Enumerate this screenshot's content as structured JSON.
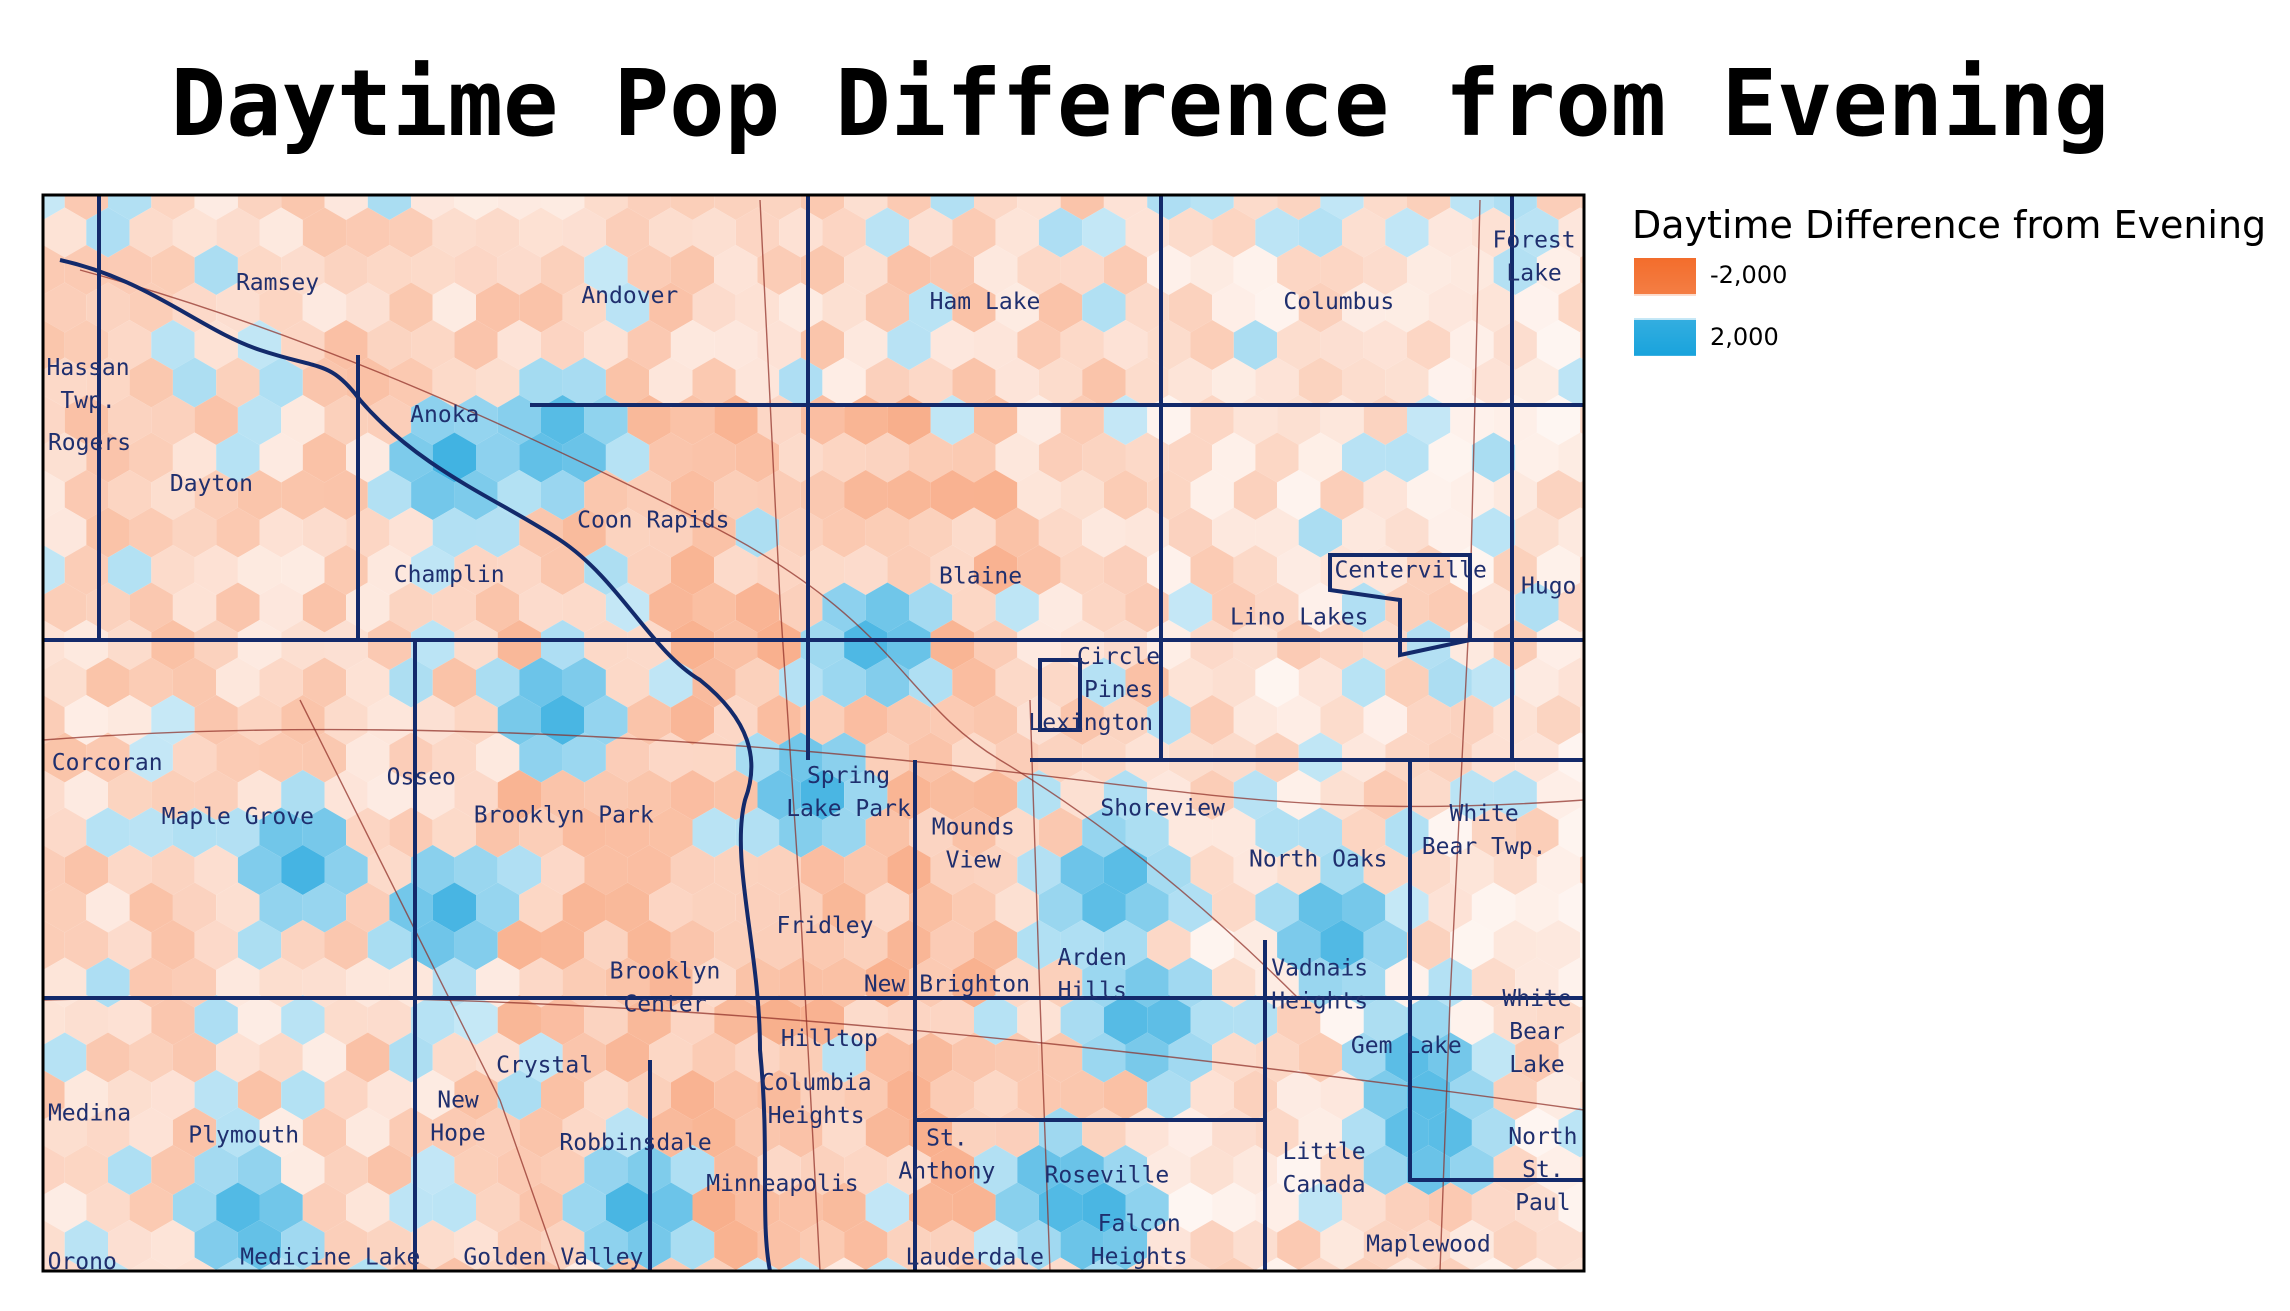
{
  "title": "Daytime Pop Difference from Evening",
  "legend": {
    "title": "Daytime Difference from Evening",
    "items": [
      {
        "label": "-2,000",
        "color": "#f26d2d"
      },
      {
        "label": "2,000",
        "color": "#1aa3dc"
      }
    ]
  },
  "places": [
    [
      "Ramsey"
    ],
    [
      "Andover"
    ],
    [
      "Ham Lake"
    ],
    [
      "Columbus"
    ],
    [
      "Forest",
      "Lake"
    ],
    [
      "Hassan",
      "Twp."
    ],
    [
      "Rogers"
    ],
    [
      "Dayton"
    ],
    [
      "Anoka"
    ],
    [
      "Coon Rapids"
    ],
    [
      "Champlin"
    ],
    [
      "Blaine"
    ],
    [
      "Centerville"
    ],
    [
      "Lino Lakes"
    ],
    [
      "Hugo"
    ],
    [
      "Circle",
      "Pines"
    ],
    [
      "Lexington"
    ],
    [
      "Corcoran"
    ],
    [
      "Osseo"
    ],
    [
      "Spring",
      "Lake Park"
    ],
    [
      "Maple Grove"
    ],
    [
      "Brooklyn Park"
    ],
    [
      "Mounds",
      "View"
    ],
    [
      "Shoreview"
    ],
    [
      "White",
      "Bear Twp."
    ],
    [
      "North Oaks"
    ],
    [
      "Fridley"
    ],
    [
      "Brooklyn",
      "Center"
    ],
    [
      "New Brighton"
    ],
    [
      "Arden",
      "Hills"
    ],
    [
      "Vadnais",
      "Heights"
    ],
    [
      "White",
      "Bear",
      "Lake"
    ],
    [
      "Gem Lake"
    ],
    [
      "Hilltop"
    ],
    [
      "Crystal"
    ],
    [
      "Columbia",
      "Heights"
    ],
    [
      "Medina"
    ],
    [
      "New",
      "Hope"
    ],
    [
      "Plymouth"
    ],
    [
      "Robbinsdale"
    ],
    [
      "St.",
      "Anthony"
    ],
    [
      "Little",
      "Canada"
    ],
    [
      "North",
      "St.",
      "Paul"
    ],
    [
      "Roseville"
    ],
    [
      "Minneapolis"
    ],
    [
      "Falcon",
      "Heights"
    ],
    [
      "Maplewood"
    ],
    [
      "Orono"
    ],
    [
      "Medicine Lake"
    ],
    [
      "Golden Valley"
    ],
    [
      "Lauderdale"
    ]
  ]
}
